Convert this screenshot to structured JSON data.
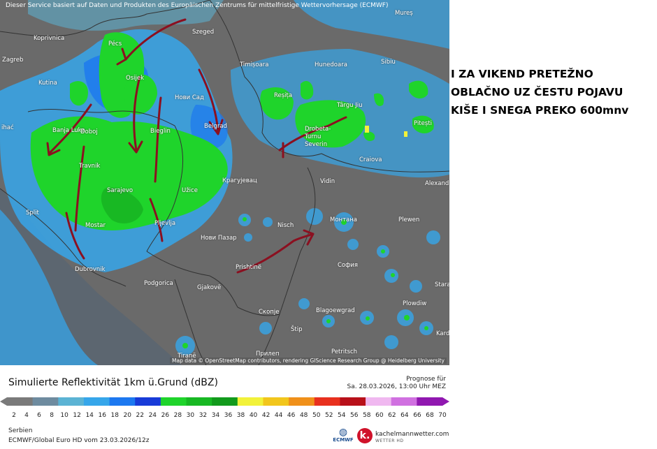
{
  "map": {
    "disclaimer": "Dieser Service basiert auf Daten und Produkten des Europäischen Zentrums für mittelfristige Wettervorhersage (ECMWF)",
    "attribution": "Map data © OpenStreetMap contributors, rendering GIScience Research Group @ Heidelberg University",
    "cities": [
      {
        "id": "mures",
        "name": "Mureș"
      },
      {
        "id": "koprivnica",
        "name": "Koprivnica"
      },
      {
        "id": "szeged",
        "name": "Szeged"
      },
      {
        "id": "zagreb",
        "name": "Zagreb"
      },
      {
        "id": "pecs",
        "name": "Pécs"
      },
      {
        "id": "timisoara",
        "name": "Timișoara"
      },
      {
        "id": "hunedoara",
        "name": "Hunedoara"
      },
      {
        "id": "sibiu",
        "name": "Sibiu"
      },
      {
        "id": "kutina",
        "name": "Kutina"
      },
      {
        "id": "osijek",
        "name": "Osijek"
      },
      {
        "id": "novisad",
        "name": "Нови Сад"
      },
      {
        "id": "resita",
        "name": "Reșița"
      },
      {
        "id": "targujiu",
        "name": "Târgu Jiu"
      },
      {
        "id": "pitesti",
        "name": "Pitești"
      },
      {
        "id": "banjaluka",
        "name": "Banja Luka"
      },
      {
        "id": "doboj",
        "name": "Doboj"
      },
      {
        "id": "bieglin",
        "name": "Bieglin"
      },
      {
        "id": "belgrad",
        "name": "Belgrad"
      },
      {
        "id": "drobeta",
        "name": "Drobeta-Turnu Severin"
      },
      {
        "id": "craiova",
        "name": "Craiova"
      },
      {
        "id": "travnik",
        "name": "Travnik"
      },
      {
        "id": "alexandria",
        "name": "Alexand"
      },
      {
        "id": "sarajevo",
        "name": "Sarajevo"
      },
      {
        "id": "uzice",
        "name": "Užice"
      },
      {
        "id": "kragujevac",
        "name": "Крагујевац"
      },
      {
        "id": "vidin",
        "name": "Vidin"
      },
      {
        "id": "split",
        "name": "Split"
      },
      {
        "id": "mostar",
        "name": "Mostar"
      },
      {
        "id": "pljevlja",
        "name": "Pljevlja"
      },
      {
        "id": "nis",
        "name": "Nisch"
      },
      {
        "id": "montana",
        "name": "Монтана"
      },
      {
        "id": "pleven",
        "name": "Plewen"
      },
      {
        "id": "novipazar",
        "name": "Нови Пазар"
      },
      {
        "id": "pristina",
        "name": "Prishtinë"
      },
      {
        "id": "sofia",
        "name": "София"
      },
      {
        "id": "dubrovnik",
        "name": "Dubrovnik"
      },
      {
        "id": "podgorica",
        "name": "Podgorica"
      },
      {
        "id": "gjakove",
        "name": "Gjakovë"
      },
      {
        "id": "stara",
        "name": "Stara"
      },
      {
        "id": "skopje",
        "name": "Скопје"
      },
      {
        "id": "blagoevgrad",
        "name": "Blagoewgrad"
      },
      {
        "id": "plovdiv",
        "name": "Plowdiw"
      },
      {
        "id": "stip",
        "name": "Štip"
      },
      {
        "id": "kardzhali",
        "name": "Kards"
      },
      {
        "id": "prilep",
        "name": "Прилеп"
      },
      {
        "id": "petritsch",
        "name": "Petritsch"
      },
      {
        "id": "tirane",
        "name": "Tiranë"
      },
      {
        "id": "ihac",
        "name": "ihać"
      }
    ]
  },
  "headline": {
    "line1": "I ZA VIKEND PRETEŽNO",
    "line2": "OBLAČNO UZ ČESTU POJAVU",
    "line3": "KIŠE I SNEGA PREKO 600mnv"
  },
  "legend": {
    "title": "Simulierte Reflektivität 1km ü.Grund (dBZ)",
    "forecast_label": "Prognose für",
    "forecast_time": "Sa. 28.03.2026, 13:00 Uhr MEZ",
    "ticks": [
      "2",
      "4",
      "6",
      "8",
      "10",
      "12",
      "14",
      "16",
      "18",
      "20",
      "22",
      "24",
      "26",
      "28",
      "30",
      "32",
      "34",
      "36",
      "38",
      "40",
      "42",
      "44",
      "46",
      "48",
      "50",
      "52",
      "54",
      "56",
      "58",
      "60",
      "62",
      "64",
      "66",
      "68",
      "70"
    ],
    "colors": [
      "#7a7a7a",
      "#6e8b9f",
      "#5bb3d4",
      "#36a6ea",
      "#1c78f0",
      "#183bd8",
      "#1fd42b",
      "#18b823",
      "#129a1c",
      "#f2f23a",
      "#f2c61c",
      "#f0901a",
      "#e8301e",
      "#b8101a",
      "#f0b8f0",
      "#d070e0",
      "#9018b0"
    ],
    "region": "Serbien",
    "model_run": "ECMWF/Global Euro HD vom  23.03.2026/12z"
  },
  "branding": {
    "ecmwf": "ECMWF",
    "site": "kachelmannwetter.com",
    "site_sub": "WETTER HD",
    "k_letter": "k."
  }
}
